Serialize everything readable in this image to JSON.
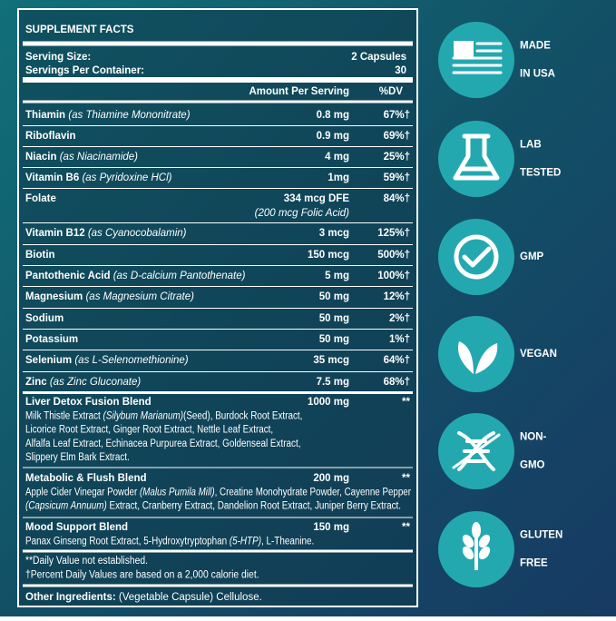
{
  "header": {
    "title": "SUPPLEMENT FACTS"
  },
  "serving": {
    "size_label": "Serving Size:",
    "size_value": "2 Capsules",
    "per_container_label": "Servings Per Container:",
    "per_container_value": "30"
  },
  "columns": {
    "amount": "Amount Per Serving",
    "dv": "%DV"
  },
  "nutrients": [
    {
      "name": "Thiamin",
      "detail": "(as Thiamine Mononitrate)",
      "amount": "0.8 mg",
      "dv": "67%†"
    },
    {
      "name": "Riboflavin",
      "amount": "0.9 mg",
      "dv": "69%†"
    },
    {
      "name": "Niacin",
      "detail": "(as Niacinamide)",
      "amount": "4 mg",
      "dv": "25%†"
    },
    {
      "name": "Vitamin B6",
      "detail": "(as Pyridoxine HCl)",
      "amount": "1mg",
      "dv": "59%†"
    },
    {
      "name": "Folate",
      "amount": "334 mcg DFE",
      "amount_note": "(200 mcg Folic Acid)",
      "dv": "84%†"
    },
    {
      "name": "Vitamin B12",
      "detail": "(as Cyanocobalamin)",
      "amount": "3 mcg",
      "dv": "125%†"
    },
    {
      "name": "Biotin",
      "amount": "150 mcg",
      "dv": "500%†"
    },
    {
      "name": "Pantothenic Acid",
      "detail": "(as D-calcium Pantothenate)",
      "amount": "5 mg",
      "dv": "100%†"
    },
    {
      "name": "Magnesium",
      "detail": "(as Magnesium Citrate)",
      "amount": "50 mg",
      "dv": "12%†"
    },
    {
      "name": "Sodium",
      "amount": "50 mg",
      "dv": "2%†"
    },
    {
      "name": "Potassium",
      "amount": "50 mg",
      "dv": "1%†"
    },
    {
      "name": "Selenium",
      "detail": "(as L-Selenomethionine)",
      "amount": "35 mcg",
      "dv": "64%†"
    },
    {
      "name": "Zinc",
      "detail": "(as Zinc Gluconate)",
      "amount": "7.5 mg",
      "dv": "68%†"
    }
  ],
  "blends": [
    {
      "name": "Liver Detox Fusion Blend",
      "amount": "1000 mg",
      "dv": "**",
      "lines": [
        [
          {
            "text": "Milk Thistle Extract "
          },
          {
            "text": "(Silybum Marianum)",
            "italic": true
          },
          {
            "text": "(Seed), Burdock Root Extract,"
          }
        ],
        [
          {
            "text": "Licorice Root Extract, Ginger Root Extract, Nettle Leaf Extract,"
          }
        ],
        [
          {
            "text": "Alfalfa Leaf Extract, Echinacea Purpurea Extract, Goldenseal Extract,"
          }
        ],
        [
          {
            "text": "Slippery Elm Bark Extract."
          }
        ]
      ]
    },
    {
      "name": "Metabolic & Flush Blend",
      "amount": "200 mg",
      "dv": "**",
      "lines": [
        [
          {
            "text": "Apple Cider Vinegar Powder "
          },
          {
            "text": "(Malus Pumila Mill)",
            "italic": true
          },
          {
            "text": ", Creatine Monohydrate Powder, Cayenne Pepper"
          }
        ],
        [
          {
            "text": "(Capsicum Annuum)",
            "italic": true
          },
          {
            "text": " Extract, Cranberry Extract, Dandelion Root Extract, Juniper Berry Extract."
          }
        ]
      ]
    },
    {
      "name": "Mood Support Blend",
      "amount": "150 mg",
      "dv": "**",
      "lines": [
        [
          {
            "text": "Panax Ginseng Root Extract, 5-Hydroxytryptophan "
          },
          {
            "text": "(5-HTP)",
            "italic": true
          },
          {
            "text": ", L-Theanine."
          }
        ]
      ]
    }
  ],
  "footnotes": [
    "**Daily Value not established.",
    "†Percent Daily Values are based on a 2,000 calorie diet."
  ],
  "other_ingredients": {
    "label": "Other Ingredients:",
    "value": "(Vegetable Capsule) Cellulose."
  },
  "badges": [
    {
      "lines": [
        "MADE",
        "IN USA"
      ]
    },
    {
      "lines": [
        "LAB",
        "TESTED"
      ]
    },
    {
      "lines": [
        "GMP"
      ]
    },
    {
      "lines": [
        "VEGAN"
      ]
    },
    {
      "lines": [
        "NON-",
        "GMO"
      ]
    },
    {
      "lines": [
        "GLUTEN",
        "FREE"
      ]
    }
  ]
}
